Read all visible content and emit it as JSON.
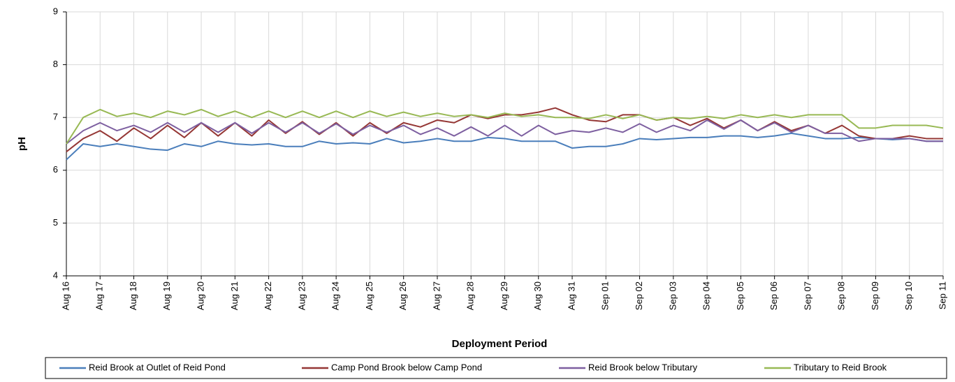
{
  "chart_data": {
    "type": "line",
    "xlabel": "Deployment Period",
    "ylabel": "pH",
    "x": [
      0,
      0.5,
      1,
      1.5,
      2,
      2.5,
      3,
      3.5,
      4,
      4.5,
      5,
      5.5,
      6,
      6.5,
      7,
      7.5,
      8,
      8.5,
      9,
      9.5,
      10,
      10.5,
      11,
      11.5,
      12,
      12.5,
      13,
      13.5,
      14,
      14.5,
      15,
      15.5,
      16,
      16.5,
      17,
      17.5,
      18,
      18.5,
      19,
      19.5,
      20,
      20.5,
      21,
      21.5,
      22,
      22.5,
      23,
      23.5,
      24,
      24.5,
      25,
      25.5,
      26
    ],
    "xlim": [
      0,
      26
    ],
    "xticks": [
      {
        "value": 0,
        "label": "Aug 16"
      },
      {
        "value": 1,
        "label": "Aug 17"
      },
      {
        "value": 2,
        "label": "Aug 18"
      },
      {
        "value": 3,
        "label": "Aug 19"
      },
      {
        "value": 4,
        "label": "Aug 20"
      },
      {
        "value": 5,
        "label": "Aug 21"
      },
      {
        "value": 6,
        "label": "Aug 22"
      },
      {
        "value": 7,
        "label": "Aug 23"
      },
      {
        "value": 8,
        "label": "Aug 24"
      },
      {
        "value": 9,
        "label": "Aug 25"
      },
      {
        "value": 10,
        "label": "Aug 26"
      },
      {
        "value": 11,
        "label": "Aug 27"
      },
      {
        "value": 12,
        "label": "Aug 28"
      },
      {
        "value": 13,
        "label": "Aug 29"
      },
      {
        "value": 14,
        "label": "Aug 30"
      },
      {
        "value": 15,
        "label": "Aug 31"
      },
      {
        "value": 16,
        "label": "Sep 01"
      },
      {
        "value": 17,
        "label": "Sep 02"
      },
      {
        "value": 18,
        "label": "Sep 03"
      },
      {
        "value": 19,
        "label": "Sep 04"
      },
      {
        "value": 20,
        "label": "Sep 05"
      },
      {
        "value": 21,
        "label": "Sep 06"
      },
      {
        "value": 22,
        "label": "Sep 07"
      },
      {
        "value": 23,
        "label": "Sep 08"
      },
      {
        "value": 24,
        "label": "Sep 09"
      },
      {
        "value": 25,
        "label": "Sep 10"
      },
      {
        "value": 26,
        "label": "Sep 11"
      }
    ],
    "ylim": [
      4,
      9
    ],
    "yticks": [
      4,
      5,
      6,
      7,
      8,
      9
    ],
    "grid": true,
    "legend": "bottom",
    "series": [
      {
        "name": "Reid Brook at Outlet of Reid Pond",
        "color": "#4a7ebb",
        "values": [
          6.2,
          6.5,
          6.45,
          6.5,
          6.45,
          6.4,
          6.38,
          6.5,
          6.45,
          6.55,
          6.5,
          6.48,
          6.5,
          6.45,
          6.45,
          6.55,
          6.5,
          6.52,
          6.5,
          6.6,
          6.52,
          6.55,
          6.6,
          6.55,
          6.55,
          6.62,
          6.6,
          6.55,
          6.55,
          6.55,
          6.42,
          6.45,
          6.45,
          6.5,
          6.6,
          6.58,
          6.6,
          6.62,
          6.62,
          6.65,
          6.65,
          6.62,
          6.65,
          6.7,
          6.65,
          6.6,
          6.6,
          6.62,
          6.6,
          6.58,
          6.6,
          6.55,
          6.55
        ]
      },
      {
        "name": "Camp Pond Brook below Camp Pond",
        "color": "#953735",
        "values": [
          6.35,
          6.6,
          6.75,
          6.55,
          6.8,
          6.6,
          6.85,
          6.62,
          6.9,
          6.65,
          6.9,
          6.65,
          6.95,
          6.7,
          6.92,
          6.68,
          6.9,
          6.65,
          6.9,
          6.7,
          6.9,
          6.82,
          6.95,
          6.9,
          7.05,
          6.98,
          7.05,
          7.05,
          7.1,
          7.18,
          7.05,
          6.95,
          6.92,
          7.05,
          7.05,
          6.95,
          7.0,
          6.85,
          6.98,
          6.8,
          6.95,
          6.75,
          6.92,
          6.75,
          6.85,
          6.7,
          6.85,
          6.65,
          6.6,
          6.6,
          6.65,
          6.6,
          6.6
        ]
      },
      {
        "name": "Reid Brook below Tributary",
        "color": "#7d5fa0",
        "values": [
          6.5,
          6.75,
          6.9,
          6.75,
          6.85,
          6.72,
          6.9,
          6.72,
          6.9,
          6.72,
          6.9,
          6.7,
          6.9,
          6.72,
          6.9,
          6.7,
          6.88,
          6.68,
          6.85,
          6.72,
          6.85,
          6.68,
          6.8,
          6.65,
          6.82,
          6.65,
          6.85,
          6.65,
          6.85,
          6.68,
          6.75,
          6.72,
          6.8,
          6.72,
          6.88,
          6.72,
          6.85,
          6.75,
          6.95,
          6.78,
          6.95,
          6.75,
          6.9,
          6.72,
          6.85,
          6.7,
          6.7,
          6.55,
          6.6,
          6.6,
          6.6,
          6.55,
          6.55
        ]
      },
      {
        "name": "Tributary to Reid Brook",
        "color": "#98b954",
        "values": [
          6.5,
          7.0,
          7.15,
          7.02,
          7.08,
          7.0,
          7.12,
          7.05,
          7.15,
          7.02,
          7.12,
          7.0,
          7.12,
          7.0,
          7.12,
          7.0,
          7.12,
          7.0,
          7.12,
          7.02,
          7.1,
          7.02,
          7.08,
          7.02,
          7.05,
          7.0,
          7.08,
          7.02,
          7.05,
          7.0,
          7.0,
          6.98,
          7.05,
          6.98,
          7.05,
          6.95,
          7.0,
          6.98,
          7.02,
          6.98,
          7.05,
          7.0,
          7.05,
          7.0,
          7.05,
          7.05,
          7.05,
          6.8,
          6.8,
          6.85,
          6.85,
          6.85,
          6.8
        ]
      }
    ]
  }
}
